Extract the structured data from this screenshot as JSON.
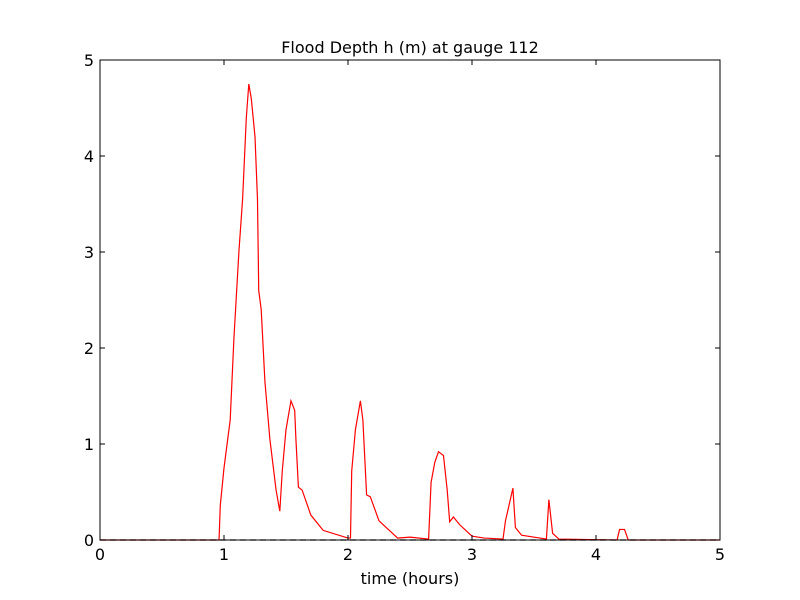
{
  "chart_data": {
    "type": "line",
    "title": "Flood Depth h (m) at gauge 112",
    "x_label": "time (hours)",
    "series": [
      {
        "color": "#ff0000",
        "style": "solid",
        "x": [
          0,
          0.96,
          0.97,
          1.0,
          1.05,
          1.08,
          1.12,
          1.15,
          1.18,
          1.2,
          1.22,
          1.25,
          1.27,
          1.28,
          1.3,
          1.33,
          1.37,
          1.42,
          1.45,
          1.47,
          1.5,
          1.54,
          1.57,
          1.58,
          1.6,
          1.63,
          1.7,
          1.8,
          2.0,
          2.02,
          2.03,
          2.06,
          2.1,
          2.12,
          2.15,
          2.18,
          2.25,
          2.35,
          2.4,
          2.5,
          2.65,
          2.67,
          2.7,
          2.73,
          2.77,
          2.8,
          2.82,
          2.85,
          2.9,
          3.0,
          3.1,
          3.25,
          3.27,
          3.33,
          3.35,
          3.4,
          3.6,
          3.62,
          3.65,
          3.7,
          4.17,
          4.19,
          4.23,
          4.26,
          5
        ],
        "values": [
          0,
          0,
          0.36,
          0.75,
          1.25,
          2.1,
          3.0,
          3.55,
          4.4,
          4.75,
          4.6,
          4.2,
          3.55,
          2.6,
          2.4,
          1.65,
          1.05,
          0.52,
          0.3,
          0.72,
          1.15,
          1.45,
          1.35,
          1.05,
          0.55,
          0.52,
          0.26,
          0.1,
          0.02,
          0.02,
          0.72,
          1.15,
          1.45,
          1.25,
          0.47,
          0.45,
          0.2,
          0.08,
          0.02,
          0.03,
          0.01,
          0.6,
          0.81,
          0.92,
          0.88,
          0.52,
          0.19,
          0.24,
          0.16,
          0.04,
          0.02,
          0.01,
          0.2,
          0.54,
          0.13,
          0.05,
          0.01,
          0.42,
          0.07,
          0.01,
          0,
          0.11,
          0.11,
          0,
          0
        ]
      },
      {
        "color": "#000000",
        "style": "dashed",
        "x": [
          0,
          5
        ],
        "values": [
          0,
          0
        ]
      }
    ],
    "xlim": [
      0,
      5
    ],
    "xticks": [
      0,
      1,
      2,
      3,
      4,
      5
    ],
    "ylim": [
      0,
      5
    ],
    "yticks": [
      0,
      1,
      2,
      3,
      4,
      5
    ]
  }
}
